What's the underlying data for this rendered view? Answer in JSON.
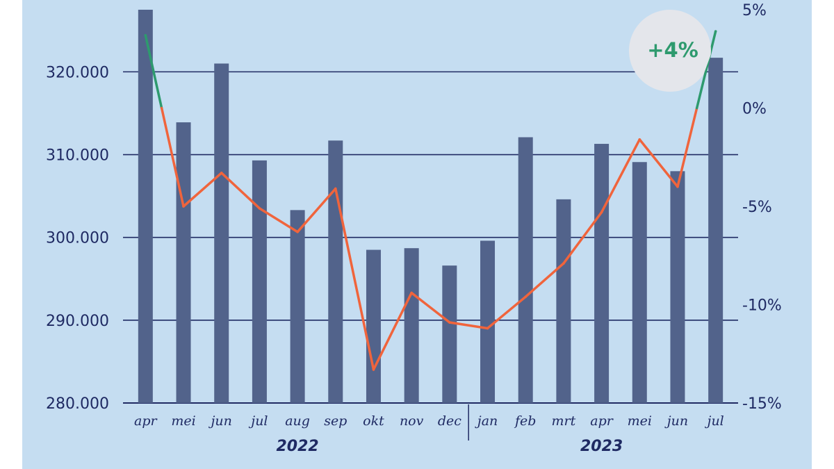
{
  "chart_data": {
    "type": "bar",
    "categories": [
      "apr",
      "mei",
      "jun",
      "jul",
      "aug",
      "sep",
      "okt",
      "nov",
      "dec",
      "jan",
      "feb",
      "mrt",
      "apr",
      "mei",
      "jun",
      "jul"
    ],
    "years": [
      {
        "label": "2022",
        "first_index": 0,
        "last_index": 8
      },
      {
        "label": "2023",
        "first_index": 9,
        "last_index": 15
      }
    ],
    "series": [
      {
        "values": [
          327500,
          313900,
          321000,
          309300,
          303300,
          311700,
          298500,
          298700,
          296600,
          299600,
          312100,
          304600,
          311300,
          309100,
          308000,
          321700
        ],
        "axis": "left",
        "color": "#52638b"
      },
      {
        "values": [
          3.7,
          -5,
          -3.3,
          -5.1,
          -6.3,
          -4.1,
          -13.3,
          -9.4,
          -10.9,
          -11.2,
          -9.6,
          -7.9,
          -5.3,
          -1.6,
          -4,
          3.9
        ],
        "axis": "right",
        "type": "line",
        "color": "#f0643c",
        "positive_color": "#2e9a6e"
      }
    ],
    "left_axis": {
      "ylim": [
        280000,
        327500
      ],
      "ticks": [
        280000,
        290000,
        300000,
        310000,
        320000
      ],
      "tick_labels": [
        "280.000",
        "290.000",
        "300.000",
        "310.000",
        "320.000"
      ]
    },
    "right_axis": {
      "ylim": [
        -15,
        5
      ],
      "ticks": [
        -15,
        -10,
        -5,
        0,
        5
      ],
      "tick_labels": [
        "-15%",
        "-10%",
        "-5%",
        "0%",
        "5%"
      ]
    },
    "grid": true,
    "annotation": {
      "text": "+4%",
      "anchor_index": 15,
      "color": "#2e9a6e"
    }
  },
  "colors": {
    "background": "#c5ddf1",
    "axis": "#1f2a63",
    "callout_fill": "#e4e6eb"
  }
}
